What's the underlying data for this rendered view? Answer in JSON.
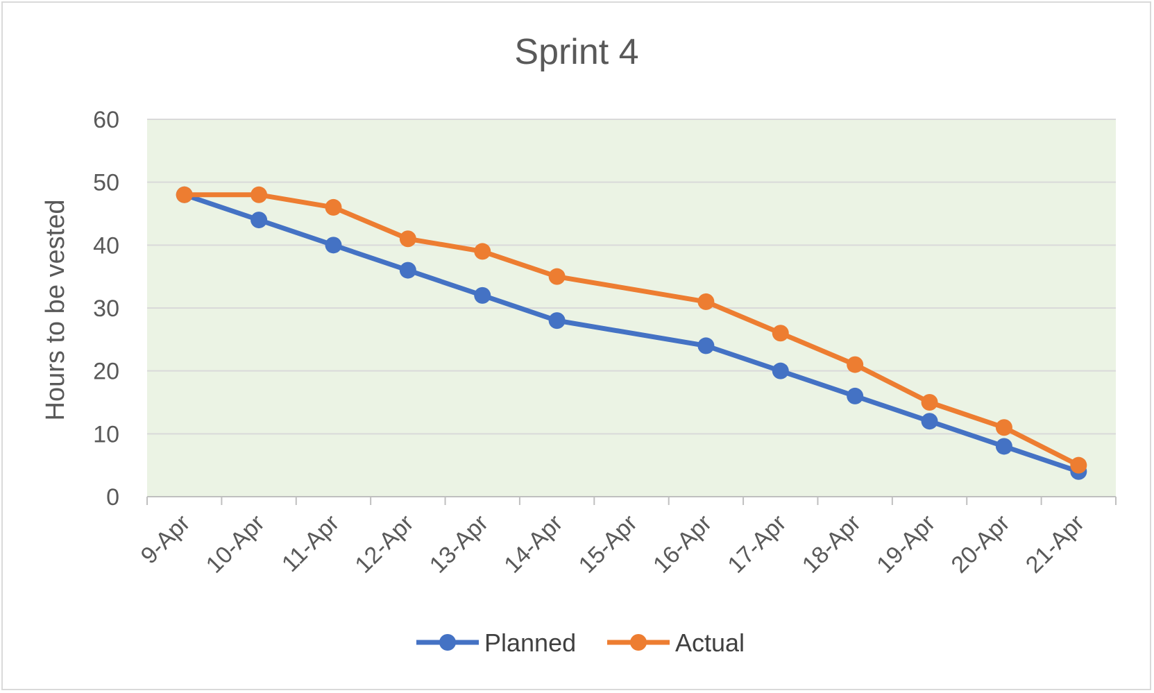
{
  "chart_data": {
    "type": "line",
    "title": "Sprint 4",
    "xlabel": "",
    "ylabel": "Hours to be vested",
    "categories": [
      "9-Apr",
      "10-Apr",
      "11-Apr",
      "12-Apr",
      "13-Apr",
      "14-Apr",
      "15-Apr",
      "16-Apr",
      "17-Apr",
      "18-Apr",
      "19-Apr",
      "20-Apr",
      "21-Apr"
    ],
    "ylim": [
      0,
      60
    ],
    "yticks": [
      "0",
      "10",
      "20",
      "30",
      "40",
      "50",
      "60"
    ],
    "grid": true,
    "legend_position": "bottom",
    "plot_background": "#ebf3e4",
    "series": [
      {
        "name": "Planned",
        "color": "#4472c4",
        "values": [
          48,
          44,
          40,
          36,
          32,
          28,
          null,
          24,
          20,
          16,
          12,
          8,
          4
        ]
      },
      {
        "name": "Actual",
        "color": "#ed7d31",
        "values": [
          48,
          48,
          46,
          41,
          39,
          35,
          null,
          31,
          26,
          21,
          15,
          11,
          5
        ]
      }
    ]
  }
}
